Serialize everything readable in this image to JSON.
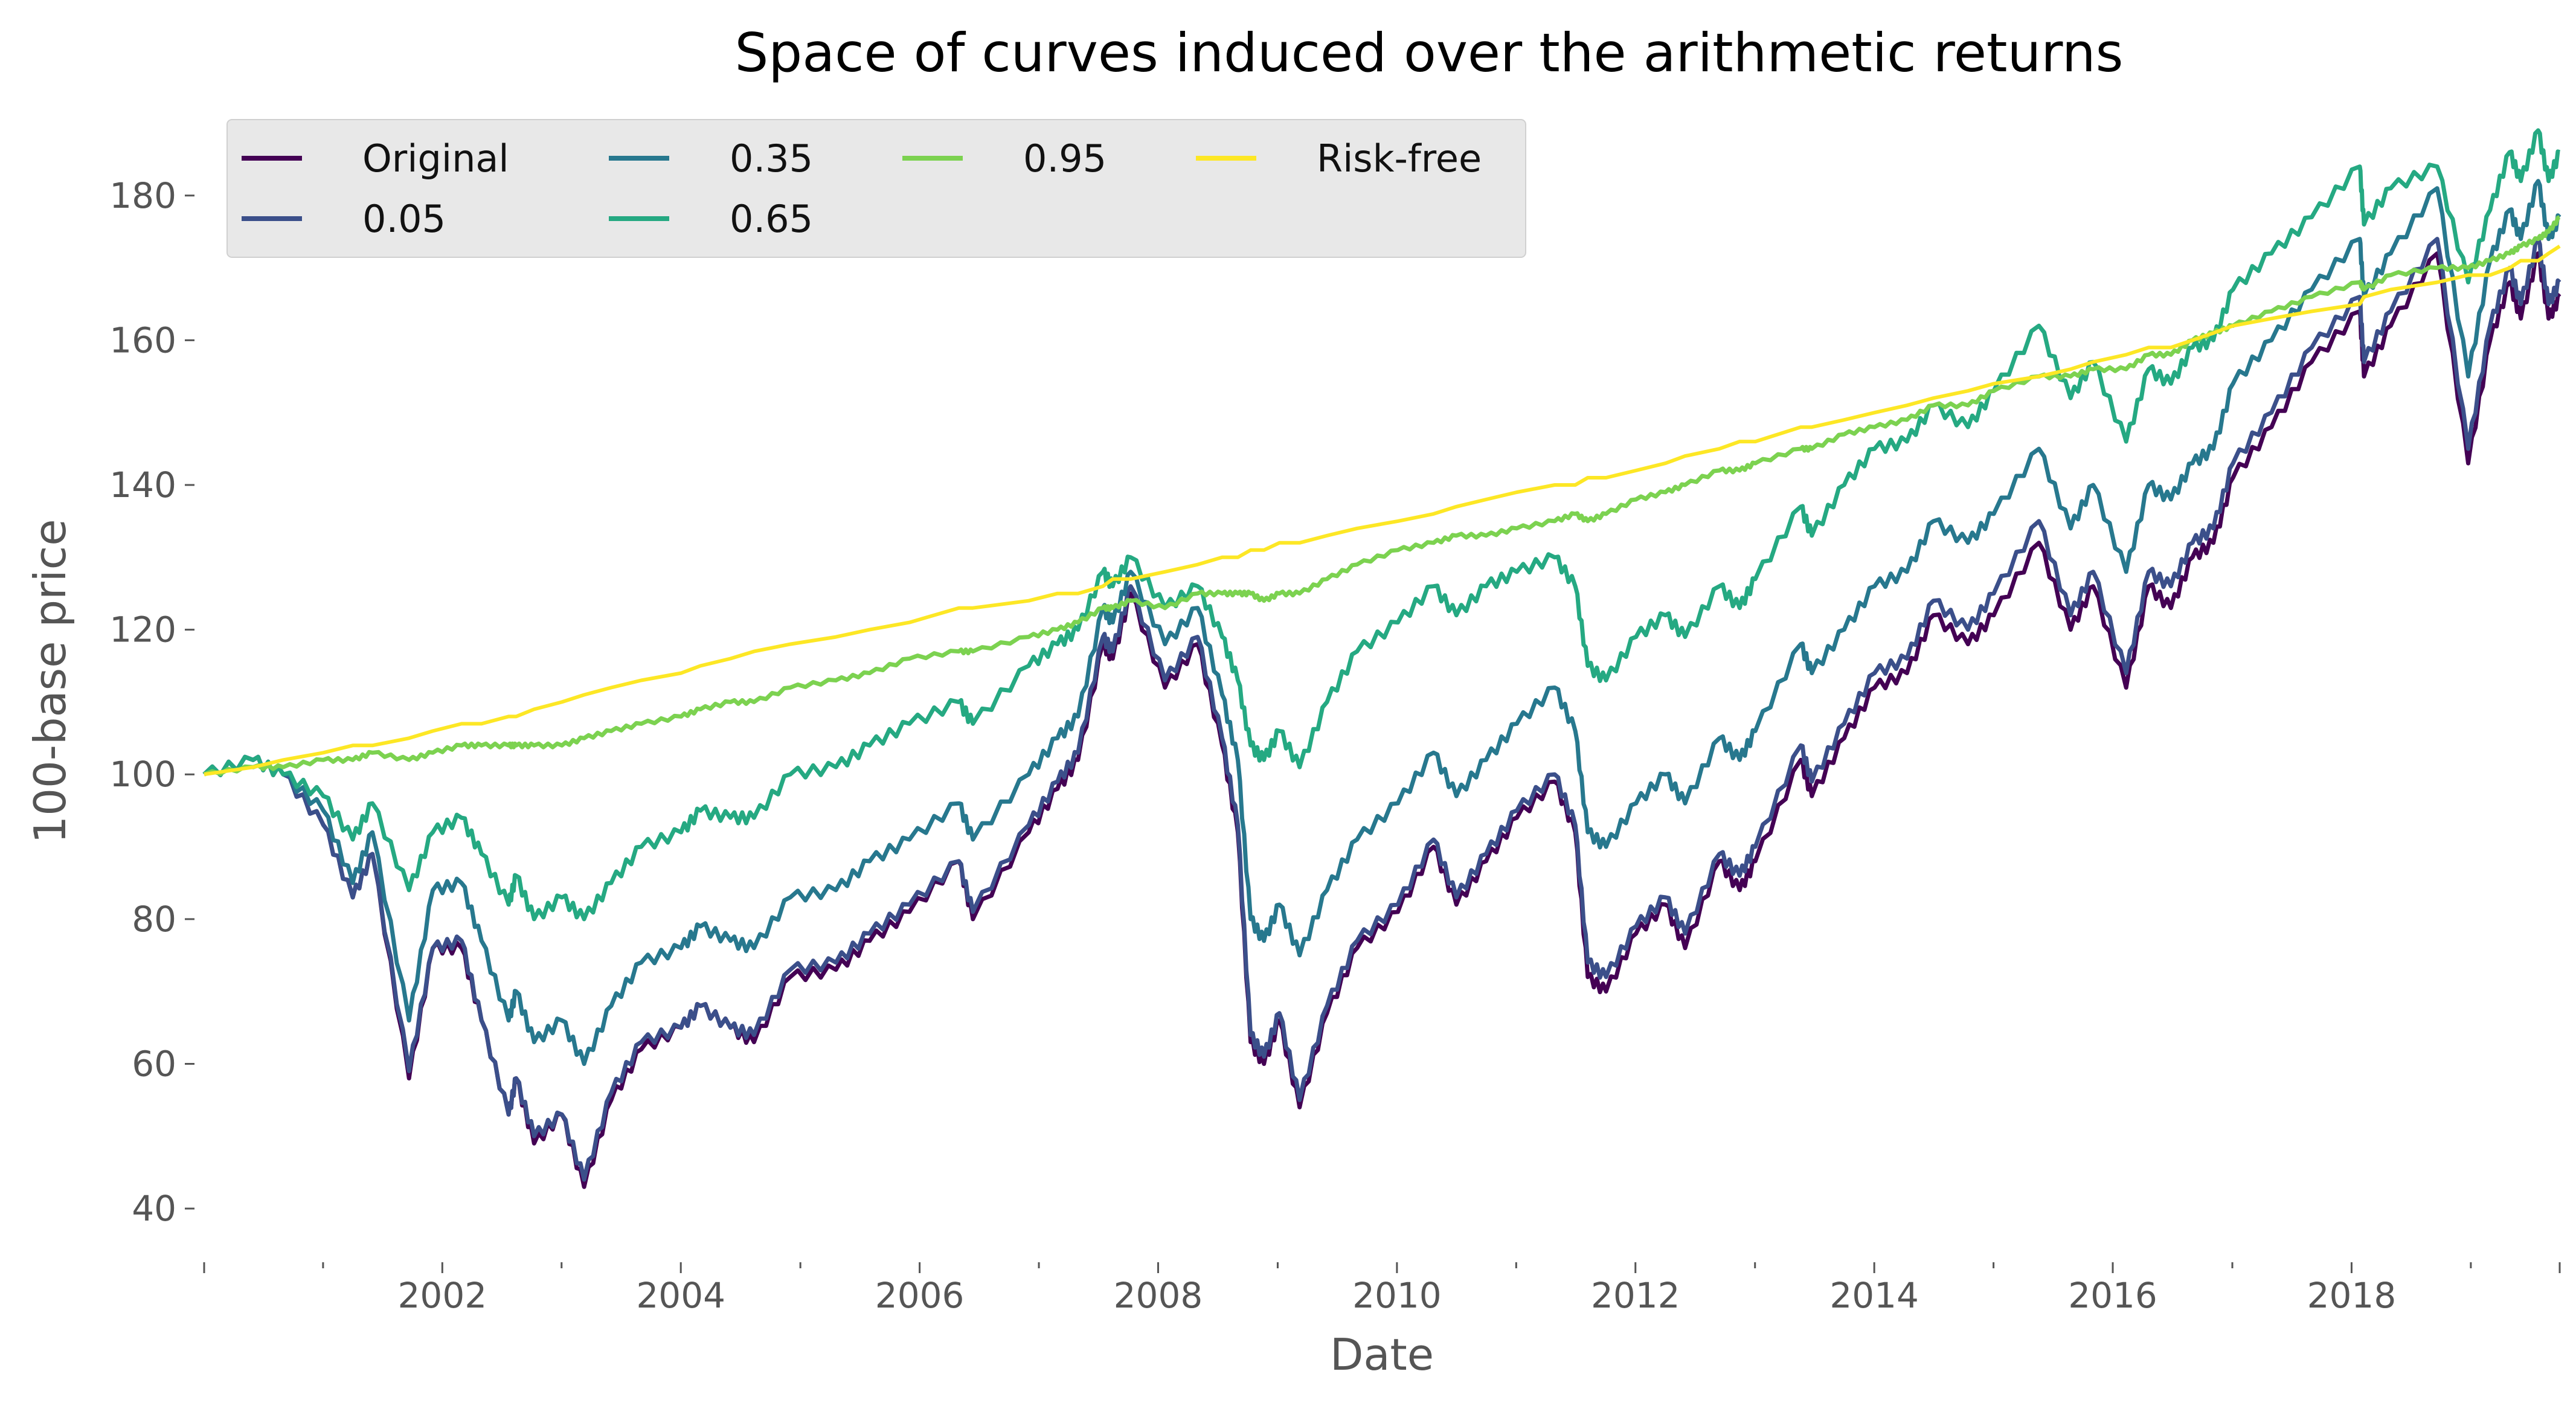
{
  "chart_data": {
    "type": "line",
    "title": "Space of curves induced over the arithmetic returns",
    "xlabel": "Date",
    "ylabel": "100-base price",
    "xlim": [
      "2000-01-03",
      "2019-09-30"
    ],
    "ylim": [
      34,
      193
    ],
    "x_ticks": [
      "2002",
      "2004",
      "2006",
      "2008",
      "2010",
      "2012",
      "2014",
      "2016",
      "2018"
    ],
    "y_ticks": [
      "40",
      "60",
      "80",
      "100",
      "120",
      "140",
      "160",
      "180"
    ],
    "grid": false,
    "legend": {
      "placement": "upper-left",
      "columns": 4
    },
    "colors": {
      "Original": "#440154",
      "0.05": "#3b4f8a",
      "0.35": "#27788e",
      "0.65": "#25a982",
      "0.95": "#7cd250",
      "Risk-free": "#fde725"
    },
    "x": [
      "2000-01-03",
      "2000-06-01",
      "2000-09-01",
      "2001-01-02",
      "2001-04-02",
      "2001-06-01",
      "2001-09-21",
      "2001-12-03",
      "2002-03-01",
      "2002-05-01",
      "2002-07-23",
      "2002-08-15",
      "2002-10-09",
      "2003-01-02",
      "2003-03-11",
      "2003-06-02",
      "2003-09-02",
      "2004-01-02",
      "2004-03-01",
      "2004-06-01",
      "2004-08-12",
      "2004-12-01",
      "2005-04-20",
      "2005-08-01",
      "2005-12-01",
      "2006-05-01",
      "2006-06-13",
      "2006-12-01",
      "2007-02-27",
      "2007-05-01",
      "2007-07-16",
      "2007-08-15",
      "2007-10-09",
      "2008-01-22",
      "2008-05-01",
      "2008-07-15",
      "2008-09-01",
      "2008-10-10",
      "2008-11-20",
      "2009-01-06",
      "2009-03-09",
      "2009-06-01",
      "2009-09-01",
      "2010-01-04",
      "2010-04-23",
      "2010-07-02",
      "2010-10-01",
      "2011-01-03",
      "2011-04-29",
      "2011-07-01",
      "2011-08-08",
      "2011-10-03",
      "2012-01-03",
      "2012-04-02",
      "2012-06-01",
      "2012-09-14",
      "2012-11-15",
      "2013-01-02",
      "2013-05-21",
      "2013-06-24",
      "2013-10-01",
      "2014-01-02",
      "2014-04-11",
      "2014-07-01",
      "2014-10-15",
      "2015-01-02",
      "2015-05-20",
      "2015-08-25",
      "2015-11-02",
      "2016-02-11",
      "2016-04-20",
      "2016-06-27",
      "2016-09-01",
      "2016-11-04",
      "2017-01-03",
      "2017-05-01",
      "2017-09-01",
      "2018-01-26",
      "2018-02-08",
      "2018-05-01",
      "2018-09-20",
      "2018-12-24",
      "2019-03-01",
      "2019-04-30",
      "2019-06-03",
      "2019-07-26",
      "2019-08-27",
      "2019-09-30"
    ],
    "series": [
      {
        "name": "Original",
        "values": [
          100,
          102,
          100,
          93,
          83,
          89,
          58,
          76,
          76,
          66,
          53,
          58,
          49,
          53,
          43,
          55,
          62,
          65,
          68,
          65,
          63,
          72,
          73,
          77,
          81,
          88,
          80,
          92,
          98,
          102,
          118,
          116,
          125,
          112,
          118,
          104,
          92,
          63,
          60,
          66,
          54,
          67,
          76,
          81,
          90,
          82,
          88,
          94,
          99,
          92,
          72,
          70,
          78,
          82,
          76,
          88,
          84,
          88,
          102,
          97,
          105,
          112,
          114,
          122,
          118,
          122,
          132,
          120,
          126,
          112,
          126,
          123,
          130,
          132,
          141,
          148,
          157,
          164,
          155,
          162,
          172,
          143,
          160,
          168,
          163,
          172,
          163,
          166
        ]
      },
      {
        "name": "0.05",
        "values": [
          100,
          102,
          100,
          93,
          83,
          89,
          59,
          76,
          77,
          66,
          53,
          58,
          50,
          53,
          44,
          56,
          63,
          65,
          68,
          65,
          64,
          73,
          74,
          78,
          82,
          88,
          81,
          93,
          99,
          103,
          119,
          117,
          126,
          113,
          119,
          105,
          93,
          64,
          61,
          67,
          55,
          68,
          77,
          82,
          91,
          83,
          89,
          95,
          100,
          93,
          74,
          72,
          79,
          83,
          78,
          89,
          86,
          90,
          104,
          99,
          107,
          114,
          116,
          124,
          120,
          125,
          135,
          122,
          128,
          114,
          128,
          126,
          132,
          134,
          143,
          150,
          159,
          166,
          157,
          164,
          174,
          145,
          162,
          170,
          165,
          174,
          165,
          168
        ]
      },
      {
        "name": "0.35",
        "values": [
          100,
          102,
          100,
          95,
          85,
          92,
          66,
          84,
          85,
          77,
          66,
          70,
          63,
          66,
          60,
          68,
          74,
          76,
          79,
          77,
          76,
          83,
          84,
          88,
          91,
          96,
          91,
          100,
          105,
          108,
          123,
          121,
          128,
          118,
          123,
          111,
          102,
          80,
          77,
          82,
          75,
          84,
          91,
          96,
          103,
          97,
          102,
          107,
          112,
          106,
          92,
          90,
          96,
          100,
          96,
          105,
          102,
          106,
          118,
          114,
          120,
          126,
          128,
          135,
          132,
          136,
          145,
          134,
          140,
          128,
          140,
          138,
          143,
          145,
          154,
          160,
          167,
          174,
          166,
          172,
          181,
          155,
          171,
          178,
          174,
          182,
          174,
          177
        ]
      },
      {
        "name": "0.65",
        "values": [
          100,
          102,
          100,
          97,
          91,
          96,
          84,
          92,
          94,
          89,
          82,
          86,
          80,
          83,
          80,
          85,
          90,
          92,
          95,
          94,
          94,
          100,
          101,
          104,
          107,
          110,
          107,
          115,
          118,
          120,
          128,
          126,
          130,
          123,
          126,
          119,
          113,
          104,
          102,
          106,
          101,
          110,
          117,
          121,
          126,
          122,
          126,
          128,
          130,
          126,
          115,
          113,
          119,
          122,
          119,
          126,
          123,
          127,
          137,
          133,
          140,
          145,
          146,
          151,
          148,
          153,
          162,
          152,
          157,
          146,
          156,
          154,
          159,
          160,
          167,
          172,
          177,
          184,
          176,
          181,
          184,
          168,
          178,
          186,
          182,
          189,
          182,
          186
        ]
      },
      {
        "name": "0.95",
        "values": [
          100,
          101,
          101,
          102,
          102,
          103,
          102,
          103,
          104,
          104,
          104,
          104,
          104,
          104,
          105,
          106,
          107,
          108,
          109,
          110,
          110,
          112,
          113,
          114,
          116,
          117,
          117,
          119,
          120,
          121,
          123,
          123,
          124,
          123,
          125,
          125,
          125,
          125,
          124,
          125,
          125,
          127,
          129,
          131,
          132,
          133,
          133,
          134,
          135,
          136,
          135,
          136,
          138,
          139,
          140,
          142,
          142,
          143,
          145,
          145,
          147,
          148,
          149,
          151,
          151,
          153,
          155,
          155,
          156,
          156,
          158,
          158,
          160,
          161,
          162,
          164,
          166,
          168,
          167,
          169,
          170,
          170,
          171,
          172,
          173,
          174,
          175,
          177
        ]
      },
      {
        "name": "Risk-free",
        "values": [
          100,
          101,
          102,
          103,
          104,
          104,
          105,
          106,
          107,
          107,
          108,
          108,
          109,
          110,
          111,
          112,
          113,
          114,
          115,
          116,
          117,
          118,
          119,
          120,
          121,
          123,
          123,
          124,
          125,
          125,
          126,
          127,
          127,
          128,
          129,
          130,
          130,
          131,
          131,
          132,
          132,
          133,
          134,
          135,
          136,
          137,
          138,
          139,
          140,
          140,
          141,
          141,
          142,
          143,
          144,
          145,
          146,
          146,
          148,
          148,
          149,
          150,
          151,
          152,
          153,
          154,
          155,
          156,
          157,
          158,
          159,
          159,
          160,
          161,
          162,
          163,
          164,
          165,
          166,
          167,
          168,
          169,
          169,
          170,
          171,
          171,
          172,
          173
        ]
      }
    ]
  }
}
